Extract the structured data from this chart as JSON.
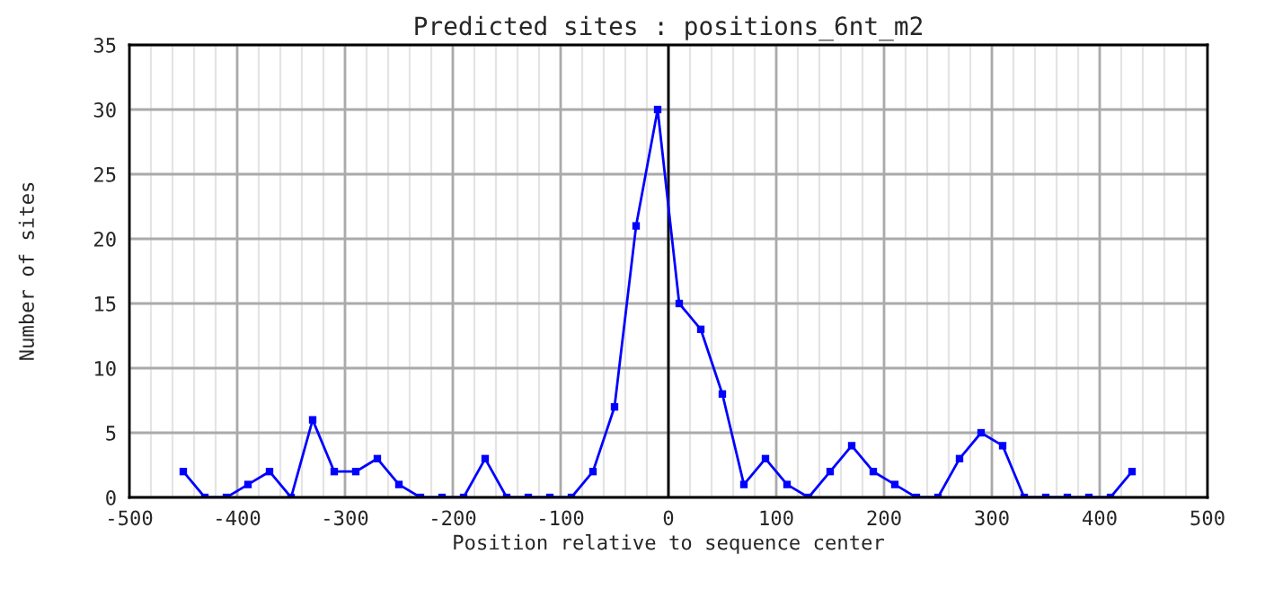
{
  "chart_data": {
    "type": "line",
    "title": "Predicted sites : positions_6nt_m2",
    "xlabel": "Position relative to sequence center",
    "ylabel": "Number of sites",
    "x": [
      -450,
      -430,
      -410,
      -390,
      -370,
      -350,
      -330,
      -310,
      -290,
      -270,
      -250,
      -230,
      -210,
      -190,
      -170,
      -150,
      -130,
      -110,
      -90,
      -70,
      -50,
      -30,
      -10,
      10,
      30,
      50,
      70,
      90,
      110,
      130,
      150,
      170,
      190,
      210,
      230,
      250,
      270,
      290,
      310,
      330,
      350,
      370,
      390,
      410,
      430
    ],
    "series": [
      {
        "color": "#0000ff",
        "values": [
          2,
          0,
          0,
          1,
          2,
          0,
          6,
          2,
          2,
          3,
          1,
          0,
          0,
          0,
          3,
          0,
          0,
          0,
          0,
          2,
          7,
          21,
          30,
          15,
          13,
          8,
          1,
          3,
          1,
          0,
          2,
          4,
          2,
          1,
          0,
          0,
          3,
          5,
          4,
          0,
          0,
          0,
          0,
          0,
          2
        ]
      }
    ],
    "xlim": [
      -500,
      500
    ],
    "xticks": [
      -500,
      -400,
      -300,
      -200,
      -100,
      0,
      100,
      200,
      300,
      400,
      500
    ],
    "ylim": [
      0,
      35
    ],
    "yticks": [
      0,
      5,
      10,
      15,
      20,
      25,
      30,
      35
    ],
    "grid": true,
    "marker": "square",
    "line_style": "solid",
    "ref_lines": [
      {
        "axis": "x",
        "value": 0,
        "color": "#000000"
      }
    ]
  }
}
